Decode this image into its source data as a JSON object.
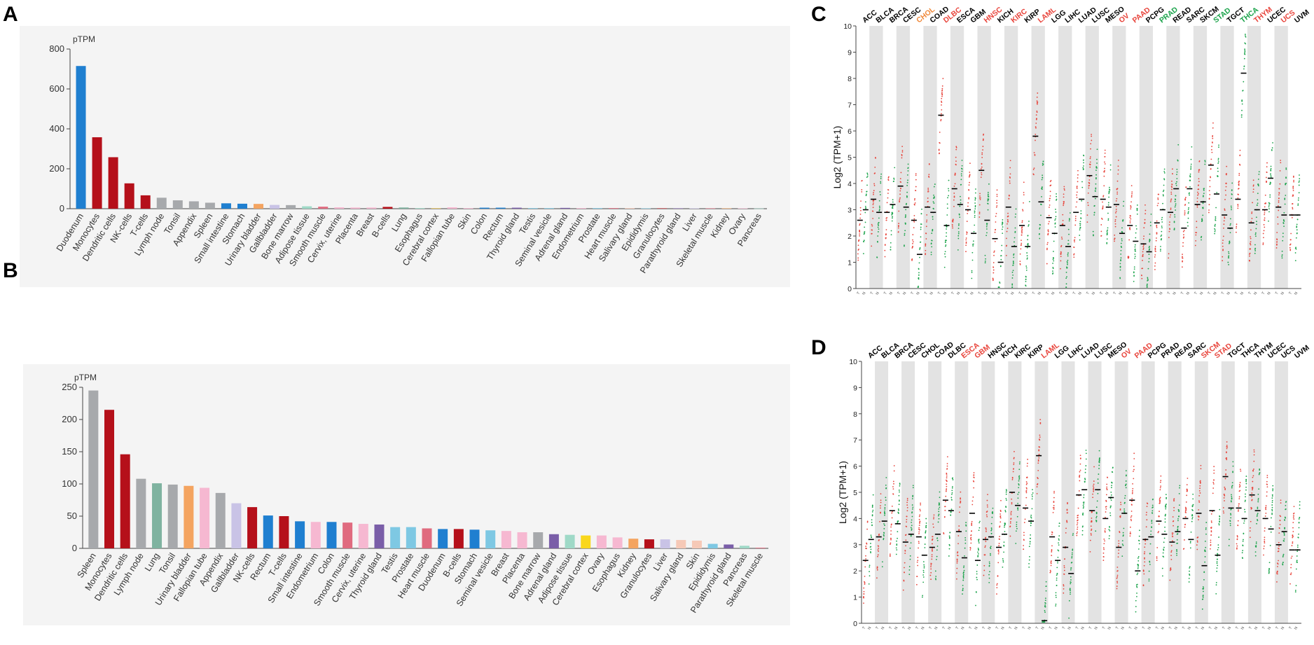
{
  "panels": {
    "A": {
      "label": "A",
      "unit": "pTPM"
    },
    "B": {
      "label": "B",
      "unit": "pTPM"
    },
    "C": {
      "label": "C",
      "ylabel": "Log2 (TPM+1)"
    },
    "D": {
      "label": "D",
      "ylabel": "Log2 (TPM+1)"
    }
  },
  "colors": {
    "red": "#b5101a",
    "blue": "#1f7fd0",
    "green_text": "#1aa34a",
    "red_text": "#e8453c",
    "band": "#e3e3e3",
    "tumor_dot": "#e8453c",
    "normal_dot": "#1aa34a",
    "bg": "#f4f4f4"
  },
  "chart_data": [
    {
      "id": "A",
      "type": "bar",
      "title": "",
      "ylabel": "pTPM",
      "ylim": [
        0,
        800
      ],
      "yticks": [
        0,
        200,
        400,
        600,
        800
      ],
      "categories": [
        "Duodenum",
        "Monocytes",
        "Dendritic cells",
        "NK-cells",
        "T-cells",
        "Lymph node",
        "Tonsil",
        "Appendix",
        "Spleen",
        "Small intestine",
        "Stomach",
        "Urinary bladder",
        "Gallbladder",
        "Bone marrow",
        "Adipose tissue",
        "Smooth muscle",
        "Cervix, uterine",
        "Placenta",
        "Breast",
        "B-cells",
        "Lung",
        "Esophagus",
        "Cerebral cortex",
        "Fallopian tube",
        "Skin",
        "Colon",
        "Rectum",
        "Thyroid gland",
        "Testis",
        "Seminal vesicle",
        "Adrenal gland",
        "Endometrium",
        "Prostate",
        "Heart muscle",
        "Salivary gland",
        "Epididymis",
        "Granulocytes",
        "Parathyroid gland",
        "Liver",
        "Skeletal muscle",
        "Kidney",
        "Ovary",
        "Pancreas"
      ],
      "values": [
        715,
        358,
        258,
        127,
        67,
        55,
        42,
        37,
        30,
        27,
        25,
        24,
        19,
        18,
        12,
        10,
        7,
        6,
        6,
        9,
        6,
        3,
        3,
        7,
        3,
        5,
        5,
        5,
        3,
        3,
        4,
        3,
        3,
        3,
        3,
        2,
        2,
        2,
        2,
        2,
        2,
        2,
        1
      ],
      "colors": [
        "#1f7fd0",
        "#b5101a",
        "#b5101a",
        "#b5101a",
        "#b5101a",
        "#a7a9ac",
        "#a7a9ac",
        "#a7a9ac",
        "#a7a9ac",
        "#1f7fd0",
        "#1f7fd0",
        "#f4a460",
        "#c9c3e6",
        "#a7a9ac",
        "#9fd9c7",
        "#e06b7f",
        "#f6b8d1",
        "#f6b8d1",
        "#f6b8d1",
        "#b5101a",
        "#7fb3a0",
        "#9fd9c7",
        "#e8c65f",
        "#f6b8d1",
        "#f6b8d1",
        "#1f7fd0",
        "#1f7fd0",
        "#7a5ea8",
        "#7ec8e3",
        "#7ec8e3",
        "#7a5ea8",
        "#f6b8d1",
        "#7ec8e3",
        "#e06b7f",
        "#f6c9b7",
        "#7ec8e3",
        "#b5101a",
        "#7a5ea8",
        "#c9c3e6",
        "#e06b7f",
        "#f4a460",
        "#f6b8d1",
        "#9fd9c7"
      ]
    },
    {
      "id": "B",
      "type": "bar",
      "title": "",
      "ylabel": "pTPM",
      "ylim": [
        0,
        250
      ],
      "yticks": [
        0,
        50,
        100,
        150,
        200,
        250
      ],
      "categories": [
        "Spleen",
        "Monocytes",
        "Dendritic cells",
        "Lymph node",
        "Lung",
        "Tonsil",
        "Urinary bladder",
        "Fallopian tube",
        "Appendix",
        "Gallbladder",
        "NK-cells",
        "Rectum",
        "T-cells",
        "Small intestine",
        "Endometrium",
        "Colon",
        "Smooth muscle",
        "Cervix, uterine",
        "Thyroid gland",
        "Testis",
        "Prostate",
        "Heart muscle",
        "Duodenum",
        "B-cells",
        "Stomach",
        "Seminal vesicle",
        "Breast",
        "Placenta",
        "Bone marrow",
        "Adrenal gland",
        "Adipose tissue",
        "Cerebral cortex",
        "Ovary",
        "Esophagus",
        "Kidney",
        "Granulocytes",
        "Liver",
        "Salivary gland",
        "Skin",
        "Epididymis",
        "Parathyroid gland",
        "Pancreas",
        "Skeletal muscle"
      ],
      "values": [
        245,
        215,
        146,
        108,
        101,
        99,
        97,
        94,
        86,
        70,
        64,
        51,
        50,
        42,
        41,
        41,
        40,
        38,
        37,
        33,
        33,
        31,
        30,
        30,
        29,
        28,
        27,
        25,
        25,
        22,
        21,
        20,
        20,
        17,
        15,
        14,
        14,
        13,
        12,
        7,
        6,
        4,
        1
      ],
      "colors": [
        "#a7a9ac",
        "#b5101a",
        "#b5101a",
        "#a7a9ac",
        "#7fb3a0",
        "#a7a9ac",
        "#f4a460",
        "#f6b8d1",
        "#a7a9ac",
        "#c9c3e6",
        "#b5101a",
        "#1f7fd0",
        "#b5101a",
        "#1f7fd0",
        "#f6b8d1",
        "#1f7fd0",
        "#e06b7f",
        "#f6b8d1",
        "#7a5ea8",
        "#7ec8e3",
        "#7ec8e3",
        "#e06b7f",
        "#1f7fd0",
        "#b5101a",
        "#1f7fd0",
        "#7ec8e3",
        "#f6b8d1",
        "#f6b8d1",
        "#a7a9ac",
        "#7a5ea8",
        "#9fd9c7",
        "#f9d71c",
        "#f6b8d1",
        "#f6b8d1",
        "#f4a460",
        "#b5101a",
        "#c9c3e6",
        "#f6c9b7",
        "#f6c9b7",
        "#7ec8e3",
        "#7a5ea8",
        "#9fd9c7",
        "#e06b7f"
      ]
    },
    {
      "id": "C",
      "type": "scatter",
      "title": "",
      "ylabel": "Log2 (TPM+1)",
      "ylim": [
        0,
        10
      ],
      "yticks": [
        0,
        1,
        2,
        3,
        4,
        5,
        6,
        7,
        8,
        9,
        10
      ],
      "cancers": [
        {
          "name": "ACC",
          "style": "normal",
          "tumor": 2.6,
          "normal": 3.0
        },
        {
          "name": "BLCA",
          "style": "normal",
          "tumor": 3.4,
          "normal": 2.9
        },
        {
          "name": "BRCA",
          "style": "normal",
          "tumor": 2.9,
          "normal": 3.2
        },
        {
          "name": "CESC",
          "style": "normal",
          "tumor": 3.9,
          "normal": 3.1
        },
        {
          "name": "CHOL",
          "style": "orange",
          "tumor": 2.6,
          "normal": 1.3
        },
        {
          "name": "COAD",
          "style": "normal",
          "tumor": 3.1,
          "normal": 2.9
        },
        {
          "name": "DLBC",
          "style": "red",
          "tumor": 6.6,
          "normal": 2.4
        },
        {
          "name": "ESCA",
          "style": "normal",
          "tumor": 3.8,
          "normal": 3.2
        },
        {
          "name": "GBM",
          "style": "normal",
          "tumor": 3.0,
          "normal": 2.1
        },
        {
          "name": "HNSC",
          "style": "red",
          "tumor": 4.5,
          "normal": 2.6
        },
        {
          "name": "KICH",
          "style": "normal",
          "tumor": 1.9,
          "normal": 1.0
        },
        {
          "name": "KIRC",
          "style": "red",
          "tumor": 3.1,
          "normal": 1.6
        },
        {
          "name": "KIRP",
          "style": "normal",
          "tumor": 2.4,
          "normal": 1.6
        },
        {
          "name": "LAML",
          "style": "red",
          "tumor": 5.8,
          "normal": 3.3
        },
        {
          "name": "LGG",
          "style": "normal",
          "tumor": 2.7,
          "normal": 2.1
        },
        {
          "name": "LIHC",
          "style": "normal",
          "tumor": 2.4,
          "normal": 1.6
        },
        {
          "name": "LUAD",
          "style": "normal",
          "tumor": 2.9,
          "normal": 3.4
        },
        {
          "name": "LUSC",
          "style": "normal",
          "tumor": 4.3,
          "normal": 3.5
        },
        {
          "name": "MESO",
          "style": "normal",
          "tumor": 3.4,
          "normal": 3.1
        },
        {
          "name": "OV",
          "style": "red",
          "tumor": 3.2,
          "normal": 2.1
        },
        {
          "name": "PAAD",
          "style": "red",
          "tumor": 2.4,
          "normal": 1.8
        },
        {
          "name": "PCPG",
          "style": "normal",
          "tumor": 1.7,
          "normal": 1.4
        },
        {
          "name": "PRAD",
          "style": "green",
          "tumor": 2.5,
          "normal": 3.0
        },
        {
          "name": "READ",
          "style": "normal",
          "tumor": 2.9,
          "normal": 3.8
        },
        {
          "name": "SARC",
          "style": "normal",
          "tumor": 2.3,
          "normal": 3.8
        },
        {
          "name": "SKCM",
          "style": "normal",
          "tumor": 3.2,
          "normal": 3.3
        },
        {
          "name": "STAD",
          "style": "green",
          "tumor": 4.7,
          "normal": 3.6
        },
        {
          "name": "TGCT",
          "style": "normal",
          "tumor": 2.8,
          "normal": 2.3
        },
        {
          "name": "THCA",
          "style": "green",
          "tumor": 3.4,
          "normal": 8.2
        },
        {
          "name": "THYM",
          "style": "red",
          "tumor": 2.5,
          "normal": 3.0
        },
        {
          "name": "UCEC",
          "style": "normal",
          "tumor": 3.0,
          "normal": 4.2
        },
        {
          "name": "UCS",
          "style": "red",
          "tumor": 3.1,
          "normal": 2.8
        },
        {
          "name": "UVM",
          "style": "normal",
          "tumor": 2.8,
          "normal": 2.8
        }
      ]
    },
    {
      "id": "D",
      "type": "scatter",
      "title": "",
      "ylabel": "Log2 (TPM+1)",
      "ylim": [
        0,
        10
      ],
      "yticks": [
        0,
        1,
        2,
        3,
        4,
        5,
        6,
        7,
        8,
        9,
        10
      ],
      "cancers": [
        {
          "name": "ACC",
          "style": "normal",
          "tumor": 2.4,
          "normal": 3.2
        },
        {
          "name": "BLCA",
          "style": "normal",
          "tumor": 3.3,
          "normal": 3.9
        },
        {
          "name": "BRCA",
          "style": "normal",
          "tumor": 4.3,
          "normal": 3.8
        },
        {
          "name": "CESC",
          "style": "normal",
          "tumor": 3.1,
          "normal": 3.4
        },
        {
          "name": "CHOL",
          "style": "normal",
          "tumor": 3.3,
          "normal": 2.6
        },
        {
          "name": "COAD",
          "style": "normal",
          "tumor": 2.9,
          "normal": 3.4
        },
        {
          "name": "DLBC",
          "style": "normal",
          "tumor": 4.7,
          "normal": 4.3
        },
        {
          "name": "ESCA",
          "style": "red",
          "tumor": 3.5,
          "normal": 2.5
        },
        {
          "name": "GBM",
          "style": "red",
          "tumor": 4.2,
          "normal": 2.4
        },
        {
          "name": "HNSC",
          "style": "normal",
          "tumor": 3.2,
          "normal": 3.3
        },
        {
          "name": "KICH",
          "style": "normal",
          "tumor": 2.9,
          "normal": 3.4
        },
        {
          "name": "KIRC",
          "style": "normal",
          "tumor": 5.0,
          "normal": 4.5
        },
        {
          "name": "KIRP",
          "style": "normal",
          "tumor": 4.4,
          "normal": 3.9
        },
        {
          "name": "LAML",
          "style": "red",
          "tumor": 6.4,
          "normal": 0.1
        },
        {
          "name": "LGG",
          "style": "normal",
          "tumor": 3.3,
          "normal": 2.4
        },
        {
          "name": "LIHC",
          "style": "normal",
          "tumor": 2.9,
          "normal": 1.9
        },
        {
          "name": "LUAD",
          "style": "normal",
          "tumor": 4.9,
          "normal": 5.1
        },
        {
          "name": "LUSC",
          "style": "normal",
          "tumor": 4.3,
          "normal": 5.1
        },
        {
          "name": "MESO",
          "style": "normal",
          "tumor": 4.0,
          "normal": 4.8
        },
        {
          "name": "OV",
          "style": "red",
          "tumor": 2.9,
          "normal": 4.2
        },
        {
          "name": "PAAD",
          "style": "red",
          "tumor": 4.7,
          "normal": 2.0
        },
        {
          "name": "PCPG",
          "style": "normal",
          "tumor": 3.2,
          "normal": 3.3
        },
        {
          "name": "PRAD",
          "style": "normal",
          "tumor": 3.9,
          "normal": 3.4
        },
        {
          "name": "READ",
          "style": "normal",
          "tumor": 3.1,
          "normal": 3.5
        },
        {
          "name": "SARC",
          "style": "normal",
          "tumor": 4.0,
          "normal": 3.2
        },
        {
          "name": "SKCM",
          "style": "red",
          "tumor": 4.2,
          "normal": 2.2
        },
        {
          "name": "STAD",
          "style": "red",
          "tumor": 4.3,
          "normal": 2.6
        },
        {
          "name": "TGCT",
          "style": "normal",
          "tumor": 5.6,
          "normal": 4.4
        },
        {
          "name": "THCA",
          "style": "normal",
          "tumor": 4.4,
          "normal": 4.0
        },
        {
          "name": "THYM",
          "style": "normal",
          "tumor": 4.9,
          "normal": 4.3
        },
        {
          "name": "UCEC",
          "style": "normal",
          "tumor": 4.0,
          "normal": 3.6
        },
        {
          "name": "UCS",
          "style": "normal",
          "tumor": 3.0,
          "normal": 3.5
        },
        {
          "name": "UVM",
          "style": "normal",
          "tumor": 2.8,
          "normal": 2.8
        }
      ]
    }
  ]
}
